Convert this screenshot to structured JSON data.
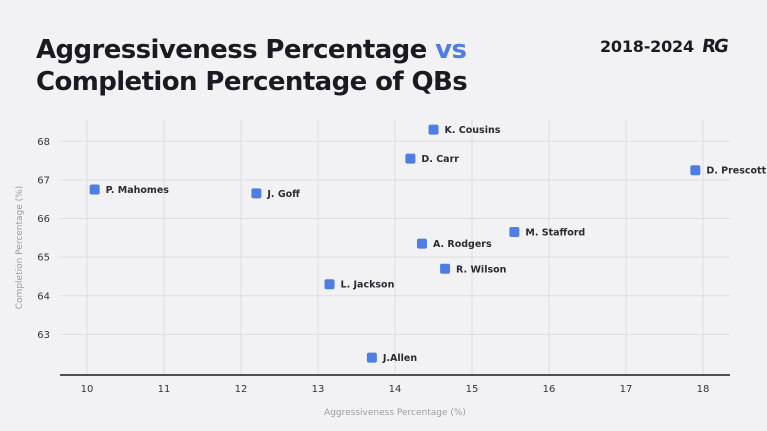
{
  "header": {
    "title_line1_a": "Aggressiveness Percentage",
    "title_line1_b": "vs",
    "title_line2": "Completion Percentage of QBs",
    "years": "2018-2024",
    "logo_text": "RG"
  },
  "colors": {
    "background": "#f2f2f4",
    "point": "#4e7de3",
    "title_accent": "#4e7de3",
    "grid": "#dedee2",
    "axis": "#1a1a22"
  },
  "chart_data": {
    "type": "scatter",
    "xlabel": "Aggressiveness Percentage (%)",
    "ylabel": "Completion Percentage (%)",
    "xlim": [
      9.65,
      18.35
    ],
    "ylim": [
      61.95,
      68.55
    ],
    "xticks": [
      10,
      11,
      12,
      13,
      14,
      15,
      16,
      17,
      18
    ],
    "yticks": [
      63,
      64,
      65,
      66,
      67,
      68
    ],
    "grid": true,
    "points": [
      {
        "label": "K. Cousins",
        "x": 14.5,
        "y": 68.3
      },
      {
        "label": "D. Carr",
        "x": 14.2,
        "y": 67.55
      },
      {
        "label": "D. Prescott",
        "x": 17.9,
        "y": 67.25
      },
      {
        "label": "P. Mahomes",
        "x": 10.1,
        "y": 66.75
      },
      {
        "label": "J. Goff",
        "x": 12.2,
        "y": 66.65
      },
      {
        "label": "M. Stafford",
        "x": 15.55,
        "y": 65.65
      },
      {
        "label": "A. Rodgers",
        "x": 14.35,
        "y": 65.35
      },
      {
        "label": "R. Wilson",
        "x": 14.65,
        "y": 64.7
      },
      {
        "label": "L. Jackson",
        "x": 13.15,
        "y": 64.3
      },
      {
        "label": "J.Allen",
        "x": 13.7,
        "y": 62.4
      }
    ]
  }
}
